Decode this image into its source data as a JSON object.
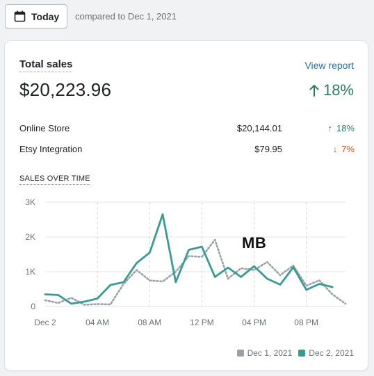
{
  "header": {
    "date_button_label": "Today",
    "compare_text": "compared to Dec 1, 2021"
  },
  "card": {
    "title": "Total sales",
    "view_report_label": "View report",
    "total_value": "$20,223.96",
    "total_change": "18%",
    "breakdown": [
      {
        "name": "Online Store",
        "amount": "$20,144.01",
        "change": "18%",
        "direction": "up"
      },
      {
        "name": "Etsy Integration",
        "amount": "$79.95",
        "change": "7%",
        "direction": "down"
      }
    ],
    "chart_section_label": "SALES OVER TIME",
    "watermark": "MB"
  },
  "colors": {
    "current_series": "#3a9b92",
    "previous_series": "#9aa0a6",
    "up": "#2a7d61",
    "down": "#c2591e",
    "link": "#2c6e9b"
  },
  "chart_data": {
    "type": "line",
    "x": [
      0,
      1,
      2,
      3,
      4,
      5,
      6,
      7,
      8,
      9,
      10,
      11,
      12,
      13,
      14,
      15,
      16,
      17,
      18,
      19,
      20,
      21,
      22,
      23
    ],
    "x_tick_positions": [
      0,
      4,
      8,
      12,
      16,
      20
    ],
    "x_tick_labels": [
      "Dec 2",
      "04 AM",
      "08 AM",
      "12 PM",
      "04 PM",
      "08 PM"
    ],
    "y_ticks": [
      0,
      1000,
      2000,
      3000
    ],
    "y_tick_labels": [
      "0",
      "1K",
      "2K",
      "3K"
    ],
    "ylim": [
      0,
      3000
    ],
    "xlim": [
      0,
      23
    ],
    "grid": true,
    "legend_position": "bottom-right",
    "series": [
      {
        "name": "Dec 1, 2021",
        "style": "dotted",
        "values": [
          180,
          100,
          250,
          50,
          70,
          60,
          650,
          1050,
          750,
          720,
          1000,
          1450,
          1430,
          1920,
          800,
          1100,
          1050,
          1280,
          900,
          1180,
          600,
          750,
          350,
          80
        ]
      },
      {
        "name": "Dec 2, 2021",
        "style": "solid",
        "values": [
          350,
          330,
          80,
          140,
          230,
          620,
          700,
          1250,
          1550,
          2650,
          700,
          1630,
          1720,
          850,
          1120,
          850,
          1160,
          800,
          630,
          1130,
          480,
          650,
          560,
          null
        ]
      }
    ]
  }
}
